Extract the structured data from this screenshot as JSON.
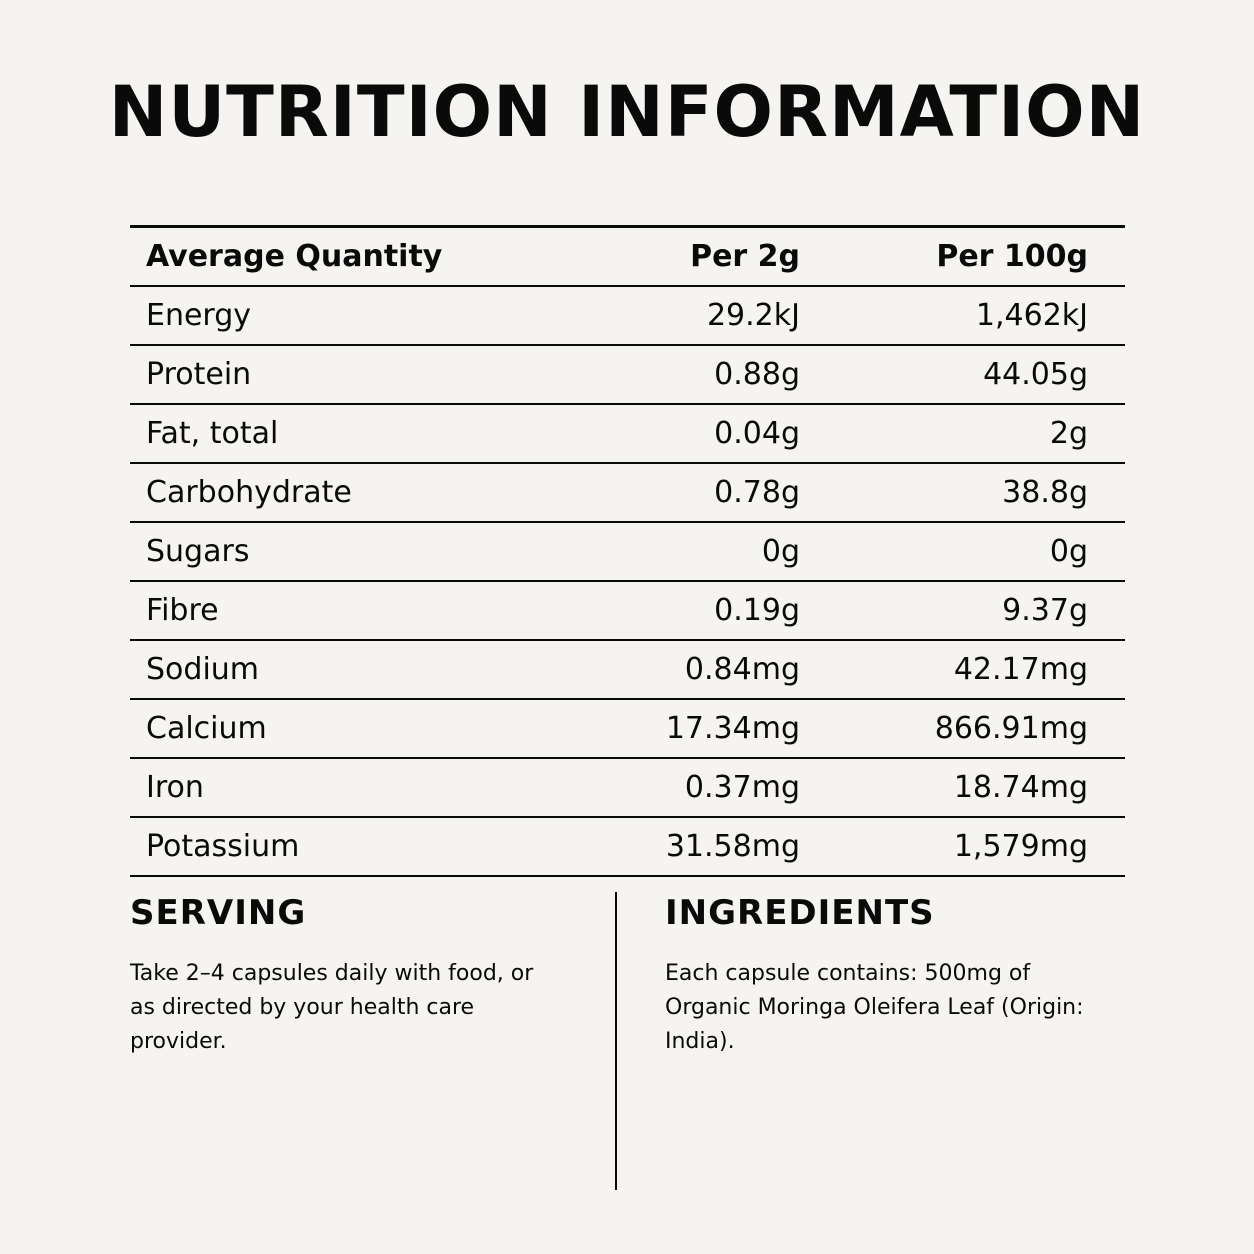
{
  "title": "NUTRITION INFORMATION",
  "table": {
    "headers": [
      "Average Quantity",
      "Per 2g",
      "Per 100g"
    ],
    "rows": [
      [
        "Energy",
        "29.2kJ",
        "1,462kJ"
      ],
      [
        "Protein",
        "0.88g",
        "44.05g"
      ],
      [
        "Fat, total",
        "0.04g",
        "2g"
      ],
      [
        "Carbohydrate",
        "0.78g",
        "38.8g"
      ],
      [
        "Sugars",
        "0g",
        "0g"
      ],
      [
        "Fibre",
        "0.19g",
        "9.37g"
      ],
      [
        "Sodium",
        "0.84mg",
        "42.17mg"
      ],
      [
        "Calcium",
        "17.34mg",
        "866.91mg"
      ],
      [
        "Iron",
        "0.37mg",
        "18.74mg"
      ],
      [
        "Potassium",
        "31.58mg",
        "1,579mg"
      ]
    ]
  },
  "serving": {
    "heading": "SERVING",
    "text": "Take 2–4 capsules daily with food, or as directed by your health care provider."
  },
  "ingredients": {
    "heading": "INGREDIENTS",
    "text": "Each capsule contains: 500mg of Organic Moringa Oleifera Leaf (Origin: India)."
  },
  "colors": {
    "background": "#f6f4f0",
    "text": "#0a0a0a"
  }
}
